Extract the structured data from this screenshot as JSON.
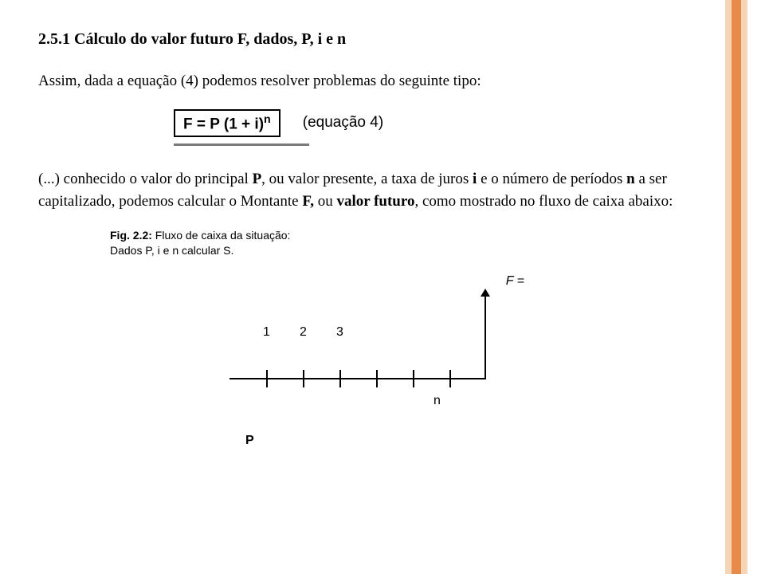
{
  "title": "2.5.1 Cálculo do valor futuro F, dados, P, i e n",
  "para1": "Assim, dada a equação (4) podemos resolver problemas do seguinte tipo:",
  "formula": {
    "left": "F = P (1 + i)",
    "exp": "n",
    "label": "(equação 4)"
  },
  "para2": {
    "t1": "(...) conhecido o valor do principal ",
    "b1": "P",
    "t2": ", ou valor presente, a taxa de juros ",
    "b2": "i",
    "t3": " e o número de períodos ",
    "b3": "n",
    "t4": " a ser capitalizado, podemos calcular o Montante ",
    "b4": "F,",
    "t5": " ou ",
    "b5": "valor futuro",
    "t6": ", como mostrado no fluxo de caixa abaixo:"
  },
  "caption": {
    "line1a": "Fig. 2.2:",
    "line1b": " Fluxo de caixa da situação:",
    "line2": "Dados P, i e n calcular S."
  },
  "diagram": {
    "f": "F =",
    "n1": "1",
    "n2": "2",
    "n3": "3",
    "n": "n",
    "p": "P"
  },
  "fontsize": {
    "title": 20,
    "body": 19
  }
}
